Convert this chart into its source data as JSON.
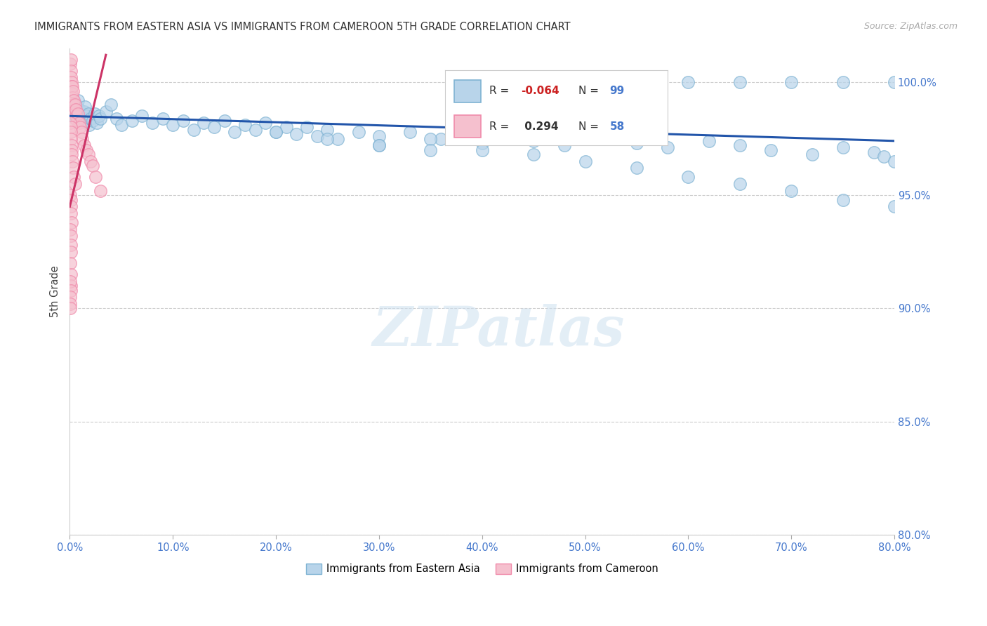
{
  "title": "IMMIGRANTS FROM EASTERN ASIA VS IMMIGRANTS FROM CAMEROON 5TH GRADE CORRELATION CHART",
  "source": "Source: ZipAtlas.com",
  "ylabel": "5th Grade",
  "watermark": "ZIPatlas",
  "x_min": 0.0,
  "x_max": 80.0,
  "y_min": 80.0,
  "y_max": 101.5,
  "x_ticks": [
    0,
    10,
    20,
    30,
    40,
    50,
    60,
    70,
    80
  ],
  "y_ticks": [
    80,
    85,
    90,
    95,
    100
  ],
  "blue_fill": "#b8d4ea",
  "blue_edge": "#7fb3d3",
  "pink_fill": "#f5c0ce",
  "pink_edge": "#f08aaa",
  "blue_line": "#2255aa",
  "pink_line": "#cc3366",
  "legend_R1": "-0.064",
  "legend_N1": "99",
  "legend_R2": "0.294",
  "legend_N2": "58",
  "ea_x": [
    0.1,
    0.15,
    0.2,
    0.25,
    0.3,
    0.35,
    0.4,
    0.45,
    0.5,
    0.55,
    0.6,
    0.65,
    0.7,
    0.8,
    0.9,
    1.0,
    1.1,
    1.2,
    1.3,
    1.4,
    1.5,
    1.6,
    1.7,
    1.8,
    1.9,
    2.0,
    2.2,
    2.4,
    2.6,
    2.8,
    3.0,
    3.5,
    4.0,
    4.5,
    5.0,
    6.0,
    7.0,
    8.0,
    9.0,
    10.0,
    11.0,
    12.0,
    13.0,
    14.0,
    15.0,
    16.0,
    17.0,
    18.0,
    19.0,
    20.0,
    21.0,
    22.0,
    23.0,
    24.0,
    25.0,
    26.0,
    28.0,
    30.0,
    33.0,
    36.0,
    40.0,
    42.0,
    45.0,
    48.0,
    52.0,
    55.0,
    58.0,
    62.0,
    65.0,
    68.0,
    72.0,
    75.0,
    78.0,
    79.0,
    80.0,
    45.0,
    50.0,
    55.0,
    60.0,
    65.0,
    70.0,
    75.0,
    80.0,
    30.0,
    35.0,
    40.0,
    45.0,
    50.0,
    55.0,
    60.0,
    65.0,
    70.0,
    75.0,
    80.0,
    20.0,
    25.0,
    30.0,
    35.0,
    40.0
  ],
  "ea_y": [
    98.5,
    99.2,
    98.8,
    99.0,
    98.6,
    98.9,
    99.1,
    98.7,
    98.4,
    98.8,
    99.0,
    98.5,
    98.7,
    99.2,
    98.8,
    98.5,
    98.3,
    98.6,
    98.4,
    98.7,
    98.9,
    98.5,
    98.3,
    98.6,
    98.1,
    98.4,
    98.3,
    98.6,
    98.2,
    98.5,
    98.4,
    98.7,
    99.0,
    98.4,
    98.1,
    98.3,
    98.5,
    98.2,
    98.4,
    98.1,
    98.3,
    97.9,
    98.2,
    98.0,
    98.3,
    97.8,
    98.1,
    97.9,
    98.2,
    97.8,
    98.0,
    97.7,
    98.0,
    97.6,
    97.9,
    97.5,
    97.8,
    97.6,
    97.8,
    97.5,
    97.3,
    97.6,
    97.4,
    97.2,
    97.5,
    97.3,
    97.1,
    97.4,
    97.2,
    97.0,
    96.8,
    97.1,
    96.9,
    96.7,
    96.5,
    100.0,
    100.0,
    100.0,
    100.0,
    100.0,
    100.0,
    100.0,
    100.0,
    97.2,
    97.5,
    97.0,
    96.8,
    96.5,
    96.2,
    95.8,
    95.5,
    95.2,
    94.8,
    94.5,
    97.8,
    97.5,
    97.2,
    97.0,
    97.5
  ],
  "cam_x": [
    0.05,
    0.08,
    0.1,
    0.12,
    0.15,
    0.18,
    0.2,
    0.22,
    0.25,
    0.28,
    0.3,
    0.35,
    0.4,
    0.45,
    0.5,
    0.55,
    0.6,
    0.7,
    0.8,
    0.9,
    1.0,
    1.1,
    1.2,
    1.4,
    1.6,
    1.8,
    2.0,
    2.2,
    2.5,
    3.0,
    0.05,
    0.08,
    0.1,
    0.12,
    0.15,
    0.18,
    0.2,
    0.25,
    0.3,
    0.4,
    0.5,
    0.05,
    0.08,
    0.1,
    0.12,
    0.15,
    0.05,
    0.08,
    0.1,
    0.12,
    0.05,
    0.08,
    0.1,
    0.05,
    0.08,
    0.05,
    0.06,
    0.07
  ],
  "cam_y": [
    100.8,
    101.0,
    100.5,
    100.2,
    100.0,
    99.8,
    99.5,
    99.8,
    99.3,
    99.6,
    99.0,
    98.8,
    99.2,
    98.6,
    99.0,
    98.5,
    98.8,
    98.3,
    98.6,
    98.2,
    98.0,
    97.8,
    97.5,
    97.2,
    97.0,
    96.8,
    96.5,
    96.3,
    95.8,
    95.2,
    98.2,
    98.0,
    97.8,
    97.5,
    97.2,
    97.0,
    96.8,
    96.5,
    96.2,
    95.8,
    95.5,
    95.0,
    94.8,
    94.5,
    94.2,
    93.8,
    93.5,
    93.2,
    92.8,
    92.5,
    92.0,
    91.5,
    91.0,
    91.2,
    90.8,
    90.5,
    90.2,
    90.0
  ],
  "blue_trend_x0": 0.0,
  "blue_trend_x1": 80.0,
  "blue_trend_y0": 98.5,
  "blue_trend_y1": 97.4,
  "pink_trend_x0": 0.0,
  "pink_trend_x1": 3.5,
  "pink_trend_y0": 94.5,
  "pink_trend_y1": 101.2
}
